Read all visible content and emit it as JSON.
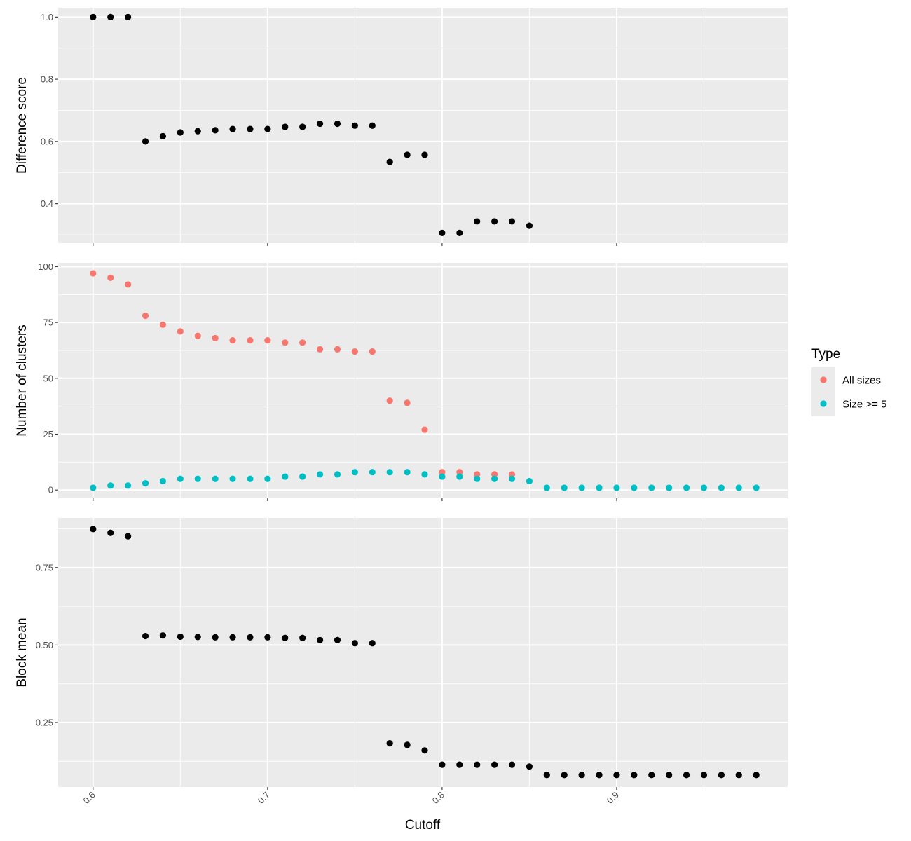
{
  "chart_data": {
    "type": "scatter",
    "xlabel": "Cutoff",
    "x_ticks": [
      0.6,
      0.7,
      0.8,
      0.9
    ],
    "x_tick_labels": [
      "0.6",
      "0.7",
      "0.8",
      "0.9"
    ],
    "xlim": [
      0.58,
      0.998
    ],
    "grid": true,
    "legend": {
      "title": "Type",
      "placement": "right",
      "entries": [
        {
          "label": "All sizes",
          "color": "#F8766D"
        },
        {
          "label": "Size >= 5",
          "color": "#00BFC4"
        }
      ]
    },
    "panels": [
      {
        "ylabel": "Difference score",
        "ylim": [
          0.273,
          1.03
        ],
        "y_ticks": [
          0.4,
          0.6,
          0.8,
          1.0
        ],
        "y_tick_labels": [
          "0.4",
          "0.6",
          "0.8",
          "1.0"
        ],
        "series": [
          {
            "color": "#000000",
            "x": [
              0.6,
              0.61,
              0.62,
              0.63,
              0.64,
              0.65,
              0.66,
              0.67,
              0.68,
              0.69,
              0.7,
              0.71,
              0.72,
              0.73,
              0.74,
              0.75,
              0.76,
              0.77,
              0.78,
              0.79,
              0.8,
              0.81,
              0.82,
              0.83,
              0.84,
              0.85
            ],
            "y": [
              1.0,
              1.0,
              1.0,
              0.6,
              0.617,
              0.629,
              0.633,
              0.636,
              0.64,
              0.64,
              0.64,
              0.647,
              0.647,
              0.657,
              0.657,
              0.651,
              0.651,
              0.534,
              0.557,
              0.557,
              0.306,
              0.306,
              0.343,
              0.343,
              0.343,
              0.329
            ]
          }
        ]
      },
      {
        "ylabel": "Number of clusters",
        "ylim": [
          -3.7,
          101.7
        ],
        "y_ticks": [
          0,
          25,
          50,
          75,
          100
        ],
        "y_tick_labels": [
          "0",
          "25",
          "50",
          "75",
          "100"
        ],
        "series": [
          {
            "name": "All sizes",
            "color": "#F8766D",
            "x": [
              0.6,
              0.61,
              0.62,
              0.63,
              0.64,
              0.65,
              0.66,
              0.67,
              0.68,
              0.69,
              0.7,
              0.71,
              0.72,
              0.73,
              0.74,
              0.75,
              0.76,
              0.77,
              0.78,
              0.79,
              0.8,
              0.81,
              0.82,
              0.83,
              0.84
            ],
            "y": [
              97,
              95,
              92,
              78,
              74,
              71,
              69,
              68,
              67,
              67,
              67,
              66,
              66,
              63,
              63,
              62,
              62,
              40,
              39,
              27,
              8,
              8,
              7,
              7,
              7
            ]
          },
          {
            "name": "Size >= 5",
            "color": "#00BFC4",
            "x": [
              0.6,
              0.61,
              0.62,
              0.63,
              0.64,
              0.65,
              0.66,
              0.67,
              0.68,
              0.69,
              0.7,
              0.71,
              0.72,
              0.73,
              0.74,
              0.75,
              0.76,
              0.77,
              0.78,
              0.79,
              0.8,
              0.81,
              0.82,
              0.83,
              0.84,
              0.85,
              0.86,
              0.87,
              0.88,
              0.89,
              0.9,
              0.91,
              0.92,
              0.93,
              0.94,
              0.95,
              0.96,
              0.97,
              0.98
            ],
            "y": [
              1,
              2,
              2,
              3,
              4,
              5,
              5,
              5,
              5,
              5,
              5,
              6,
              6,
              7,
              7,
              8,
              8,
              8,
              8,
              7,
              6,
              6,
              5,
              5,
              5,
              4,
              1,
              1,
              1,
              1,
              1,
              1,
              1,
              1,
              1,
              1,
              1,
              1,
              1
            ]
          }
        ]
      },
      {
        "ylabel": "Block mean",
        "ylim": [
          0.042,
          0.91
        ],
        "y_ticks": [
          0.25,
          0.5,
          0.75
        ],
        "y_tick_labels": [
          "0.25",
          "0.50",
          "0.75"
        ],
        "series": [
          {
            "color": "#000000",
            "x": [
              0.6,
              0.61,
              0.62,
              0.63,
              0.64,
              0.65,
              0.66,
              0.67,
              0.68,
              0.69,
              0.7,
              0.71,
              0.72,
              0.73,
              0.74,
              0.75,
              0.76,
              0.77,
              0.78,
              0.79,
              0.8,
              0.81,
              0.82,
              0.83,
              0.84,
              0.85,
              0.86,
              0.87,
              0.88,
              0.89,
              0.9,
              0.91,
              0.92,
              0.93,
              0.94,
              0.95,
              0.96,
              0.97,
              0.98
            ],
            "y": [
              0.874,
              0.862,
              0.851,
              0.529,
              0.531,
              0.527,
              0.526,
              0.525,
              0.525,
              0.525,
              0.525,
              0.523,
              0.523,
              0.516,
              0.516,
              0.506,
              0.506,
              0.183,
              0.178,
              0.16,
              0.114,
              0.114,
              0.114,
              0.114,
              0.114,
              0.108,
              0.081,
              0.081,
              0.081,
              0.081,
              0.081,
              0.081,
              0.081,
              0.081,
              0.081,
              0.081,
              0.081,
              0.081,
              0.081
            ]
          }
        ]
      }
    ]
  }
}
